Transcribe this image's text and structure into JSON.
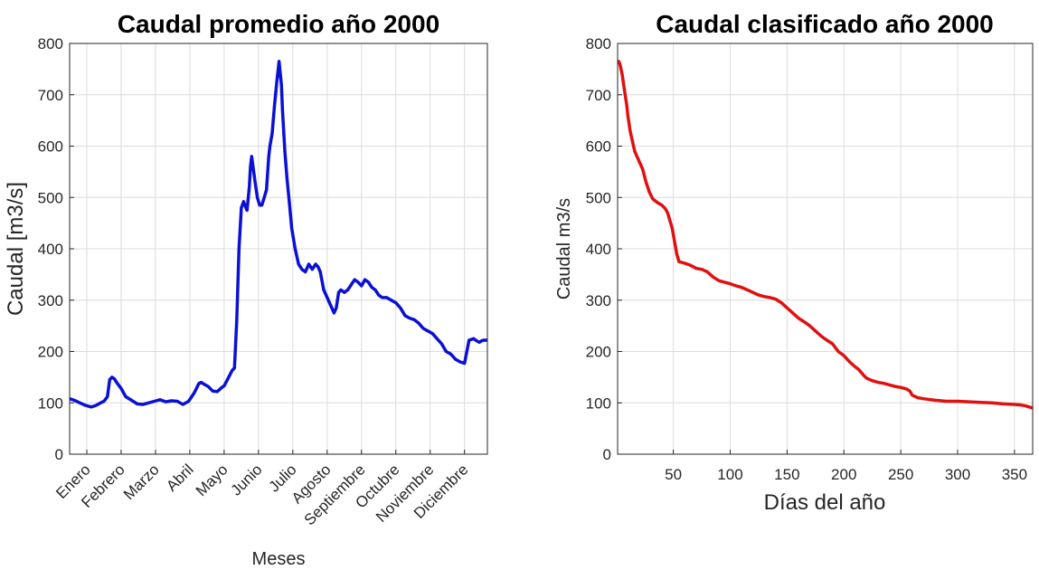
{
  "chart_data": [
    {
      "type": "line",
      "title": "Caudal promedio año 2000",
      "xlabel": "Meses",
      "ylabel": "Caudal [m3/s]",
      "ylim": [
        0,
        800
      ],
      "yticks": [
        "0",
        "100",
        "200",
        "300",
        "400",
        "500",
        "600",
        "700",
        "800"
      ],
      "xlim": [
        1,
        366
      ],
      "categories": [
        "Enero",
        "Febrero",
        "Marzo",
        "Abril",
        "Mayo",
        "Junio",
        "Julio",
        "Agosto",
        "Septiembre",
        "Octubre",
        "Noviembre",
        "Diciembre"
      ],
      "category_days": [
        16,
        46,
        76,
        106,
        136,
        166,
        196,
        226,
        256,
        286,
        316,
        346
      ],
      "grid": true,
      "series": [
        {
          "color": "#0a10d4",
          "x": [
            1,
            5,
            10,
            15,
            20,
            24,
            28,
            31,
            34,
            36,
            38,
            40,
            42,
            46,
            50,
            55,
            60,
            65,
            70,
            75,
            80,
            85,
            90,
            95,
            100,
            105,
            110,
            114,
            116,
            118,
            122,
            126,
            130,
            134,
            136,
            140,
            143,
            145,
            147,
            149,
            151,
            153,
            155,
            156,
            158,
            159,
            160,
            163,
            165,
            167,
            169,
            171,
            173,
            175,
            176,
            178,
            180,
            182,
            184,
            186,
            187,
            189,
            191,
            193,
            195,
            198,
            201,
            204,
            207,
            210,
            213,
            216,
            218,
            220,
            223,
            226,
            229,
            232,
            234,
            236,
            238,
            241,
            244,
            247,
            250,
            253,
            256,
            259,
            262,
            265,
            268,
            271,
            274,
            278,
            282,
            286,
            290,
            294,
            298,
            302,
            306,
            310,
            314,
            318,
            322,
            326,
            330,
            334,
            338,
            342,
            346,
            350,
            354,
            357,
            359,
            361,
            363,
            366
          ],
          "y": [
            108,
            105,
            100,
            95,
            92,
            95,
            100,
            103,
            112,
            145,
            150,
            147,
            140,
            128,
            112,
            105,
            98,
            97,
            100,
            103,
            106,
            102,
            104,
            103,
            97,
            103,
            120,
            138,
            140,
            137,
            132,
            123,
            122,
            130,
            133,
            150,
            163,
            168,
            260,
            400,
            480,
            492,
            480,
            475,
            520,
            560,
            580,
            530,
            500,
            485,
            485,
            500,
            515,
            580,
            600,
            625,
            680,
            725,
            765,
            720,
            670,
            590,
            535,
            490,
            440,
            400,
            370,
            360,
            355,
            370,
            360,
            370,
            365,
            355,
            320,
            305,
            290,
            275,
            285,
            315,
            320,
            315,
            320,
            330,
            340,
            335,
            328,
            340,
            335,
            325,
            320,
            310,
            305,
            305,
            300,
            295,
            285,
            270,
            265,
            262,
            255,
            245,
            240,
            235,
            225,
            215,
            200,
            195,
            185,
            180,
            177,
            222,
            225,
            220,
            218,
            221,
            222,
            222
          ],
          "note_x_units": "day of year"
        }
      ]
    },
    {
      "type": "line",
      "title": "Caudal clasificado año 2000",
      "xlabel": "Días del año",
      "ylabel": "Caudal m3/s",
      "ylim": [
        0,
        800
      ],
      "yticks": [
        "0",
        "100",
        "200",
        "300",
        "400",
        "500",
        "600",
        "700",
        "800"
      ],
      "xlim": [
        1,
        366
      ],
      "xticks": [
        50,
        100,
        150,
        200,
        250,
        300,
        350
      ],
      "grid": true,
      "series": [
        {
          "color": "#e01010",
          "x": [
            1,
            2,
            3,
            5,
            7,
            9,
            10,
            12,
            14,
            16,
            18,
            20,
            23,
            26,
            29,
            32,
            36,
            40,
            43,
            45,
            47,
            49,
            51,
            53,
            55,
            60,
            65,
            70,
            75,
            80,
            85,
            90,
            95,
            100,
            105,
            110,
            115,
            120,
            125,
            130,
            135,
            140,
            145,
            150,
            155,
            160,
            165,
            170,
            175,
            180,
            185,
            190,
            195,
            200,
            205,
            210,
            213,
            215,
            218,
            220,
            225,
            230,
            235,
            240,
            245,
            250,
            255,
            258,
            260,
            265,
            270,
            280,
            290,
            300,
            310,
            320,
            330,
            340,
            350,
            355,
            360,
            366
          ],
          "y": [
            765,
            765,
            760,
            740,
            710,
            680,
            660,
            630,
            610,
            590,
            580,
            570,
            555,
            530,
            510,
            497,
            490,
            485,
            478,
            470,
            455,
            440,
            415,
            390,
            375,
            372,
            368,
            362,
            360,
            355,
            345,
            338,
            335,
            332,
            328,
            325,
            320,
            315,
            310,
            307,
            305,
            302,
            295,
            285,
            275,
            265,
            258,
            250,
            240,
            230,
            222,
            215,
            200,
            192,
            180,
            170,
            165,
            160,
            152,
            148,
            143,
            140,
            138,
            135,
            132,
            130,
            127,
            123,
            115,
            110,
            108,
            105,
            103,
            103,
            102,
            101,
            100,
            98,
            97,
            96,
            94,
            90
          ]
        }
      ]
    }
  ]
}
